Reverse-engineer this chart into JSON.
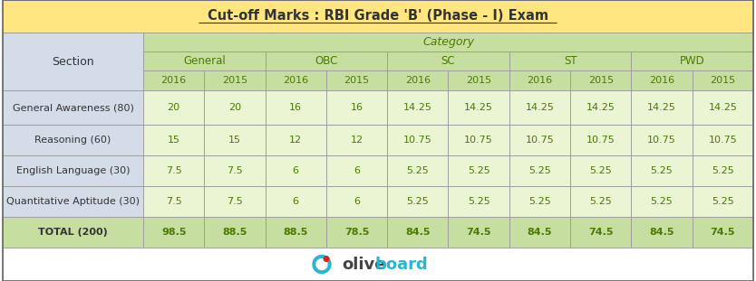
{
  "title": "Cut-off Marks : RBI Grade 'B' (Phase - I) Exam",
  "title_bg": "#FFE680",
  "header_green_bg": "#C6DFA0",
  "section_header_bg": "#D4DCE8",
  "row_data_bg": "#EAF5D4",
  "row_section_bg": "#EAF5D4",
  "total_bg": "#C6DFA0",
  "total_section_bg": "#C6DFA0",
  "footer_bg": "#FFFFFF",
  "categories": [
    "General",
    "OBC",
    "SC",
    "ST",
    "PWD"
  ],
  "sections": [
    "General Awareness (80)",
    "Reasoning (60)",
    "English Language (30)",
    "Quantitative Aptitude (30)",
    "TOTAL (200)"
  ],
  "data": [
    [
      20,
      20,
      16,
      16,
      14.25,
      14.25,
      14.25,
      14.25,
      14.25,
      14.25
    ],
    [
      15,
      15,
      12,
      12,
      10.75,
      10.75,
      10.75,
      10.75,
      10.75,
      10.75
    ],
    [
      7.5,
      7.5,
      6,
      6,
      5.25,
      5.25,
      5.25,
      5.25,
      5.25,
      5.25
    ],
    [
      7.5,
      7.5,
      6,
      6,
      5.25,
      5.25,
      5.25,
      5.25,
      5.25,
      5.25
    ],
    [
      98.5,
      88.5,
      88.5,
      78.5,
      84.5,
      74.5,
      84.5,
      74.5,
      84.5,
      74.5
    ]
  ],
  "col_headers_level2": [
    "2016",
    "2015",
    "2016",
    "2015",
    "2016",
    "2015",
    "2016",
    "2015",
    "2016",
    "2015"
  ],
  "text_dark": "#333333",
  "text_green": "#4A7A00",
  "text_olive": "#5A6E00",
  "logo_grey": "#555555",
  "logo_blue": "#00AADD",
  "logo_red": "#DD0000"
}
